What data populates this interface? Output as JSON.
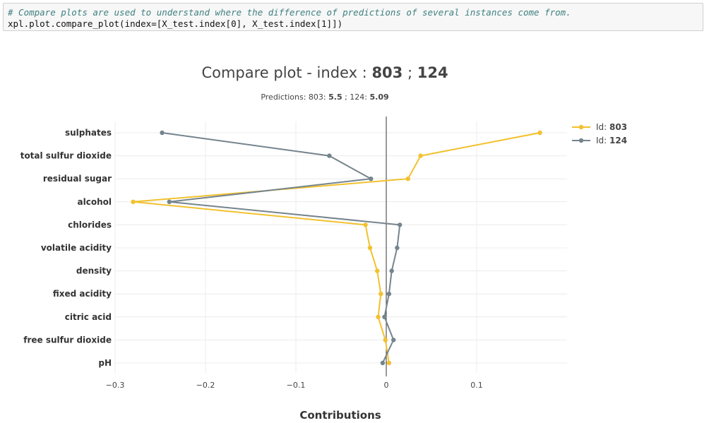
{
  "code": {
    "comment": "# Compare plots are used to understand where the difference of predictions of several instances come from.",
    "code": "xpl.plot.compare_plot(index=[X_test.index[0], X_test.index[1]])"
  },
  "chart_data": {
    "type": "line",
    "title": {
      "prefix": "Compare plot - index : ",
      "id1": "803",
      "sep": " ; ",
      "id2": "124"
    },
    "subtitle": {
      "prefix": "Predictions: 803: ",
      "v1": "5.5",
      "mid": " ; 124: ",
      "v2": "5.09"
    },
    "xlabel": "Contributions",
    "xlim": [
      -0.3,
      0.2
    ],
    "xticks": [
      -0.3,
      -0.2,
      -0.1,
      0,
      0.1
    ],
    "xtick_labels": [
      "−0.3",
      "−0.2",
      "−0.1",
      "0",
      "0.1"
    ],
    "grid": true,
    "legend_position": "top-right",
    "categories": [
      "sulphates",
      "total sulfur dioxide",
      "residual sugar",
      "alcohol",
      "chlorides",
      "volatile acidity",
      "density",
      "fixed acidity",
      "citric acid",
      "free sulfur dioxide",
      "pH"
    ],
    "series": [
      {
        "name": "803",
        "legend_prefix": "Id: ",
        "color": "#f2c12e",
        "values": [
          0.17,
          0.038,
          0.024,
          -0.28,
          -0.023,
          -0.018,
          -0.01,
          -0.006,
          -0.009,
          -0.001,
          0.003
        ]
      },
      {
        "name": "124",
        "legend_prefix": "Id: ",
        "color": "#75848d",
        "values": [
          -0.248,
          -0.063,
          -0.017,
          -0.24,
          0.015,
          0.012,
          0.006,
          0.003,
          -0.002,
          0.008,
          -0.004
        ]
      }
    ]
  }
}
